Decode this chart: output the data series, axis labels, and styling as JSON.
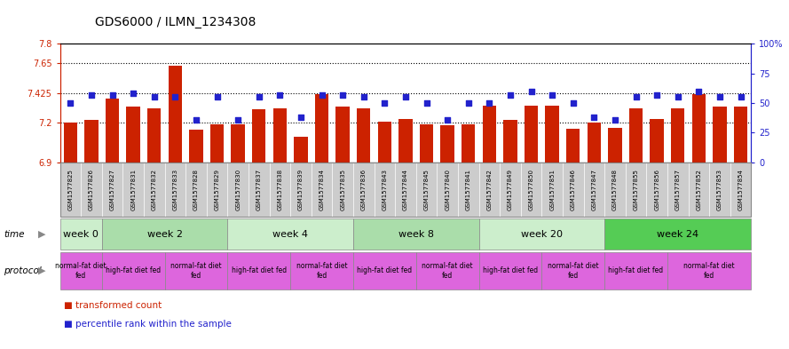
{
  "title": "GDS6000 / ILMN_1234308",
  "samples": [
    "GSM1577825",
    "GSM1577826",
    "GSM1577827",
    "GSM1577831",
    "GSM1577832",
    "GSM1577833",
    "GSM1577828",
    "GSM1577829",
    "GSM1577830",
    "GSM1577837",
    "GSM1577838",
    "GSM1577839",
    "GSM1577834",
    "GSM1577835",
    "GSM1577836",
    "GSM1577843",
    "GSM1577844",
    "GSM1577845",
    "GSM1577840",
    "GSM1577841",
    "GSM1577842",
    "GSM1577849",
    "GSM1577850",
    "GSM1577851",
    "GSM1577846",
    "GSM1577847",
    "GSM1577848",
    "GSM1577855",
    "GSM1577856",
    "GSM1577857",
    "GSM1577852",
    "GSM1577853",
    "GSM1577854"
  ],
  "bar_values": [
    7.2,
    7.22,
    7.38,
    7.32,
    7.31,
    7.63,
    7.15,
    7.19,
    7.185,
    7.3,
    7.31,
    7.095,
    7.42,
    7.32,
    7.31,
    7.21,
    7.23,
    7.19,
    7.18,
    7.185,
    7.33,
    7.22,
    7.33,
    7.33,
    7.155,
    7.2,
    7.16,
    7.31,
    7.23,
    7.31,
    7.42,
    7.32,
    7.32
  ],
  "percentile_values": [
    50,
    57,
    57,
    58,
    55,
    55,
    36,
    55,
    36,
    55,
    57,
    38,
    57,
    57,
    55,
    50,
    55,
    50,
    36,
    50,
    50,
    57,
    60,
    57,
    50,
    38,
    36,
    55,
    57,
    55,
    60,
    55,
    55
  ],
  "ylim_left": [
    6.9,
    7.8
  ],
  "ylim_right": [
    0,
    100
  ],
  "yticks_left": [
    6.9,
    7.2,
    7.425,
    7.65,
    7.8
  ],
  "yticks_right": [
    0,
    25,
    50,
    75,
    100
  ],
  "ytick_labels_left": [
    "6.9",
    "7.2",
    "7.425",
    "7.65",
    "7.8"
  ],
  "ytick_labels_right": [
    "0",
    "25",
    "50",
    "75",
    "100%"
  ],
  "hlines": [
    7.65,
    7.425,
    7.2
  ],
  "bar_color": "#cc2200",
  "dot_color": "#2222cc",
  "bar_bottom": 6.9,
  "time_groups": [
    {
      "label": "week 0",
      "start": 0,
      "end": 2,
      "color": "#aaddaa"
    },
    {
      "label": "week 2",
      "start": 2,
      "end": 8,
      "color": "#ccffcc"
    },
    {
      "label": "week 4",
      "start": 8,
      "end": 14,
      "color": "#aaddaa"
    },
    {
      "label": "week 8",
      "start": 14,
      "end": 20,
      "color": "#ccffcc"
    },
    {
      "label": "week 20",
      "start": 20,
      "end": 26,
      "color": "#aaddaa"
    },
    {
      "label": "week 24",
      "start": 26,
      "end": 33,
      "color": "#66cc66"
    }
  ],
  "protocol_groups": [
    {
      "label": "normal-fat diet\nfed",
      "start": 0,
      "end": 2
    },
    {
      "label": "high-fat diet fed",
      "start": 2,
      "end": 5
    },
    {
      "label": "normal-fat diet\nfed",
      "start": 5,
      "end": 8
    },
    {
      "label": "high-fat diet fed",
      "start": 8,
      "end": 11
    },
    {
      "label": "normal-fat diet\nfed",
      "start": 11,
      "end": 14
    },
    {
      "label": "high-fat diet fed",
      "start": 14,
      "end": 17
    },
    {
      "label": "normal-fat diet\nfed",
      "start": 17,
      "end": 20
    },
    {
      "label": "high-fat diet fed",
      "start": 20,
      "end": 23
    },
    {
      "label": "normal-fat diet\nfed",
      "start": 23,
      "end": 26
    },
    {
      "label": "high-fat diet fed",
      "start": 26,
      "end": 29
    },
    {
      "label": "normal-fat diet\nfed",
      "start": 29,
      "end": 33
    }
  ],
  "legend_bar_label": "transformed count",
  "legend_dot_label": "percentile rank within the sample",
  "title_fontsize": 10,
  "tick_fontsize": 7,
  "sample_fontsize": 5.0,
  "sample_bg": "#cccccc",
  "time_row_color_light": "#ccffcc",
  "time_row_color_dark": "#66cc66",
  "proto_row_color": "#dd66dd",
  "fig_bg": "#ffffff"
}
